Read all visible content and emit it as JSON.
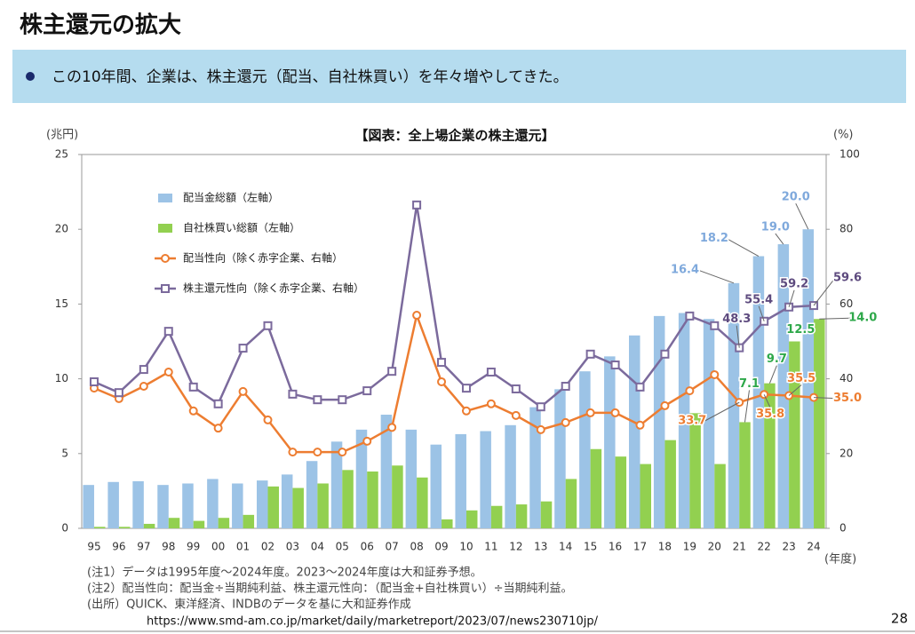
{
  "slide_title": "株主還元の拡大",
  "bullet": "この10年間、企業は、株主還元（配当、自社株買い）を年々増やしてきた。",
  "chart_data": {
    "type": "bar_line",
    "title": "【図表：全上場企業の株主還元】",
    "y_label": "(兆円)",
    "y2_label": "(%)",
    "x_label": "(年度)",
    "categories": [
      "95",
      "96",
      "97",
      "98",
      "99",
      "00",
      "01",
      "02",
      "03",
      "04",
      "05",
      "06",
      "07",
      "08",
      "09",
      "10",
      "11",
      "12",
      "13",
      "14",
      "15",
      "16",
      "17",
      "18",
      "19",
      "20",
      "21",
      "22",
      "23",
      "24"
    ],
    "ylim": [
      0,
      25
    ],
    "yticks": [
      0,
      5,
      10,
      15,
      20,
      25
    ],
    "y2lim": [
      0,
      100
    ],
    "y2ticks": [
      0,
      20,
      40,
      60,
      80,
      100
    ],
    "legend": "upper left",
    "series": [
      {
        "name": "配当金総額（左軸）",
        "kind": "bar",
        "color": "#9cc3e6",
        "values": [
          2.9,
          3.1,
          3.15,
          2.9,
          3.0,
          3.3,
          3.0,
          3.2,
          3.6,
          4.5,
          5.8,
          6.6,
          7.6,
          6.6,
          5.6,
          6.3,
          6.5,
          6.9,
          8.1,
          9.3,
          10.5,
          11.5,
          12.9,
          14.2,
          14.4,
          14.0,
          16.4,
          18.2,
          19.0,
          20.0
        ],
        "value_labels": [
          null,
          null,
          null,
          null,
          null,
          null,
          null,
          null,
          null,
          null,
          null,
          null,
          null,
          null,
          null,
          null,
          null,
          null,
          null,
          null,
          null,
          null,
          null,
          null,
          null,
          null,
          "16.4",
          "18.2",
          "19.0",
          "20.0"
        ]
      },
      {
        "name": "自社株買い総額（左軸）",
        "kind": "bar",
        "color": "#92d050",
        "values": [
          0.1,
          0.1,
          0.3,
          0.7,
          0.5,
          0.7,
          0.9,
          2.8,
          2.7,
          3.0,
          3.9,
          3.8,
          4.2,
          3.4,
          0.6,
          1.2,
          1.5,
          1.6,
          1.8,
          3.3,
          5.3,
          4.8,
          4.3,
          5.9,
          7.7,
          4.3,
          7.1,
          9.7,
          12.5,
          14.0
        ],
        "value_labels": [
          null,
          null,
          null,
          null,
          null,
          null,
          null,
          null,
          null,
          null,
          null,
          null,
          null,
          null,
          null,
          null,
          null,
          null,
          null,
          null,
          null,
          null,
          null,
          null,
          null,
          null,
          "7.1",
          "9.7",
          "12.5",
          "14.0"
        ]
      },
      {
        "name": "配当性向（除く赤字企業、右軸）",
        "kind": "line",
        "axis": "y2",
        "color": "#ed7d31",
        "values": [
          37.5,
          34.7,
          38,
          41.8,
          31.4,
          26.8,
          36.6,
          29,
          20.4,
          20.4,
          20.4,
          23.3,
          27,
          57,
          39.2,
          31.4,
          33.3,
          30.2,
          26.4,
          28.3,
          30.9,
          30.9,
          27.6,
          32.8,
          36.8,
          41.1,
          33.7,
          35.8,
          35.5,
          35.0
        ],
        "value_labels": [
          null,
          null,
          null,
          null,
          null,
          null,
          null,
          null,
          null,
          null,
          null,
          null,
          null,
          null,
          null,
          null,
          null,
          null,
          null,
          null,
          null,
          null,
          null,
          null,
          null,
          null,
          "33.7",
          "35.8",
          "35.5",
          "35.0"
        ]
      },
      {
        "name": "株主還元性向（除く赤字企業、右軸）",
        "kind": "line",
        "axis": "y2",
        "color": "#7b6a9c",
        "values": [
          39.2,
          36.3,
          42.5,
          52.7,
          37.8,
          33.3,
          48.2,
          54.2,
          35.9,
          34.4,
          34.4,
          36.8,
          42,
          86.5,
          44.4,
          37.5,
          41.8,
          37.3,
          32.5,
          38,
          46.6,
          43.7,
          37.8,
          46.6,
          56.8,
          54.2,
          48.3,
          55.4,
          59.2,
          59.6
        ],
        "value_labels": [
          null,
          null,
          null,
          null,
          null,
          null,
          null,
          null,
          null,
          null,
          null,
          null,
          null,
          null,
          null,
          null,
          null,
          null,
          null,
          null,
          null,
          null,
          null,
          null,
          null,
          null,
          "48.3",
          "55.4",
          "59.2",
          "59.6"
        ]
      }
    ]
  },
  "notes": [
    "(注1）データは1995年度～2024年度。2023～2024年度は大和証券予想。",
    "(注2）配当性向：配当金÷当期純利益、株主還元性向：（配当金+自社株買い）÷当期純利益。",
    "(出所）QUICK、東洋経済、INDBのデータを基に大和証券作成"
  ],
  "url": "https://www.smd-am.co.jp/market/daily/marketreport/2023/07/news230710jp/",
  "page_number": "28"
}
